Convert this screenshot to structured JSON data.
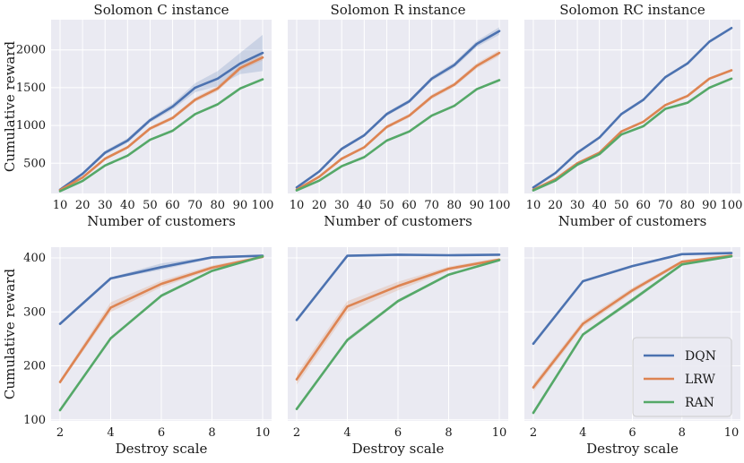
{
  "colors": {
    "DQN": "#4c72b0",
    "LRW": "#dd8452",
    "RAN": "#55a868",
    "panel_bg": "#eaeaf2",
    "grid": "#ffffff"
  },
  "chart_data": [
    {
      "type": "line",
      "title": "Solomon C instance",
      "xlabel": "Number of customers",
      "ylabel": "Cumulative reward",
      "x": [
        10,
        20,
        30,
        40,
        50,
        60,
        70,
        80,
        90,
        100
      ],
      "xticks": [
        10,
        20,
        30,
        40,
        50,
        60,
        70,
        80,
        90,
        100
      ],
      "yticks": [
        500,
        1000,
        1500,
        2000
      ],
      "ylim": [
        100,
        2400
      ],
      "series": [
        {
          "name": "DQN",
          "values": [
            150,
            360,
            640,
            800,
            1070,
            1250,
            1500,
            1620,
            1820,
            1960
          ],
          "band": [
            [
              140,
              160
            ],
            [
              345,
              375
            ],
            [
              615,
              665
            ],
            [
              770,
              830
            ],
            [
              1040,
              1100
            ],
            [
              1210,
              1290
            ],
            [
              1440,
              1560
            ],
            [
              1520,
              1720
            ],
            [
              1680,
              1960
            ],
            [
              1720,
              2200
            ]
          ]
        },
        {
          "name": "LRW",
          "values": [
            145,
            310,
            560,
            710,
            960,
            1100,
            1340,
            1490,
            1760,
            1900
          ],
          "band": [
            [
              135,
              155
            ],
            [
              295,
              325
            ],
            [
              540,
              580
            ],
            [
              690,
              730
            ],
            [
              935,
              985
            ],
            [
              1075,
              1125
            ],
            [
              1310,
              1370
            ],
            [
              1455,
              1525
            ],
            [
              1725,
              1795
            ],
            [
              1860,
              1940
            ]
          ]
        },
        {
          "name": "RAN",
          "values": [
            130,
            265,
            470,
            600,
            810,
            930,
            1150,
            1280,
            1490,
            1610
          ],
          "band": [
            [
              125,
              135
            ],
            [
              255,
              275
            ],
            [
              460,
              480
            ],
            [
              590,
              610
            ],
            [
              800,
              820
            ],
            [
              920,
              940
            ],
            [
              1140,
              1160
            ],
            [
              1270,
              1290
            ],
            [
              1475,
              1505
            ],
            [
              1595,
              1625
            ]
          ]
        }
      ]
    },
    {
      "type": "line",
      "title": "Solomon R instance",
      "xlabel": "Number of customers",
      "ylabel": "",
      "x": [
        10,
        20,
        30,
        40,
        50,
        60,
        70,
        80,
        90,
        100
      ],
      "xticks": [
        10,
        20,
        30,
        40,
        50,
        60,
        70,
        80,
        90,
        100
      ],
      "yticks": [
        500,
        1000,
        1500,
        2000
      ],
      "ylim": [
        100,
        2400
      ],
      "series": [
        {
          "name": "DQN",
          "values": [
            180,
            390,
            690,
            870,
            1150,
            1320,
            1620,
            1800,
            2080,
            2250
          ],
          "band": [
            [
              170,
              190
            ],
            [
              375,
              405
            ],
            [
              670,
              710
            ],
            [
              850,
              890
            ],
            [
              1125,
              1175
            ],
            [
              1295,
              1345
            ],
            [
              1590,
              1650
            ],
            [
              1765,
              1835
            ],
            [
              2040,
              2120
            ],
            [
              2200,
              2300
            ]
          ]
        },
        {
          "name": "LRW",
          "values": [
            150,
            320,
            560,
            710,
            980,
            1130,
            1380,
            1540,
            1790,
            1960
          ],
          "band": [
            [
              140,
              160
            ],
            [
              305,
              335
            ],
            [
              540,
              580
            ],
            [
              690,
              730
            ],
            [
              955,
              1005
            ],
            [
              1105,
              1155
            ],
            [
              1350,
              1410
            ],
            [
              1510,
              1570
            ],
            [
              1755,
              1825
            ],
            [
              1920,
              2000
            ]
          ]
        },
        {
          "name": "RAN",
          "values": [
            140,
            270,
            460,
            580,
            800,
            920,
            1130,
            1260,
            1480,
            1600
          ],
          "band": [
            [
              135,
              145
            ],
            [
              260,
              280
            ],
            [
              450,
              470
            ],
            [
              570,
              590
            ],
            [
              790,
              810
            ],
            [
              910,
              930
            ],
            [
              1120,
              1140
            ],
            [
              1250,
              1270
            ],
            [
              1465,
              1495
            ],
            [
              1585,
              1615
            ]
          ]
        }
      ]
    },
    {
      "type": "line",
      "title": "Solomon RC instance",
      "xlabel": "Number of customers",
      "ylabel": "",
      "x": [
        10,
        20,
        30,
        40,
        50,
        60,
        70,
        80,
        90,
        100
      ],
      "xticks": [
        10,
        20,
        30,
        40,
        50,
        60,
        70,
        80,
        90,
        100
      ],
      "yticks": [
        500,
        1000,
        1500,
        2000
      ],
      "ylim": [
        100,
        2400
      ],
      "series": [
        {
          "name": "DQN",
          "values": [
            180,
            370,
            640,
            840,
            1150,
            1340,
            1640,
            1820,
            2110,
            2290
          ],
          "band": [
            [
              175,
              185
            ],
            [
              362,
              378
            ],
            [
              630,
              650
            ],
            [
              830,
              850
            ],
            [
              1140,
              1160
            ],
            [
              1330,
              1350
            ],
            [
              1630,
              1650
            ],
            [
              1810,
              1830
            ],
            [
              2100,
              2120
            ],
            [
              2280,
              2300
            ]
          ]
        },
        {
          "name": "LRW",
          "values": [
            150,
            290,
            500,
            640,
            920,
            1050,
            1270,
            1390,
            1620,
            1730
          ],
          "band": [
            [
              145,
              155
            ],
            [
              283,
              297
            ],
            [
              490,
              510
            ],
            [
              630,
              650
            ],
            [
              908,
              932
            ],
            [
              1038,
              1062
            ],
            [
              1255,
              1285
            ],
            [
              1375,
              1405
            ],
            [
              1605,
              1635
            ],
            [
              1715,
              1745
            ]
          ]
        },
        {
          "name": "RAN",
          "values": [
            140,
            270,
            480,
            620,
            880,
            990,
            1220,
            1300,
            1500,
            1620
          ],
          "band": [
            [
              135,
              145
            ],
            [
              263,
              277
            ],
            [
              472,
              488
            ],
            [
              612,
              628
            ],
            [
              872,
              888
            ],
            [
              982,
              998
            ],
            [
              1212,
              1228
            ],
            [
              1292,
              1308
            ],
            [
              1490,
              1510
            ],
            [
              1610,
              1630
            ]
          ]
        }
      ]
    },
    {
      "type": "line",
      "title": "",
      "xlabel": "Destroy scale",
      "ylabel": "Cumulative reward",
      "x": [
        2,
        4,
        6,
        8,
        10
      ],
      "xticks": [
        2,
        4,
        6,
        8,
        10
      ],
      "yticks": [
        100,
        200,
        300,
        400
      ],
      "ylim": [
        98,
        420
      ],
      "series": [
        {
          "name": "DQN",
          "values": [
            278,
            362,
            383,
            401,
            404
          ],
          "band": [
            [
              277,
              279
            ],
            [
              360,
              364
            ],
            [
              378,
              390
            ],
            [
              399,
              403
            ],
            [
              402,
              406
            ]
          ]
        },
        {
          "name": "LRW",
          "values": [
            170,
            308,
            352,
            382,
            402
          ],
          "band": [
            [
              166,
              174
            ],
            [
              300,
              318
            ],
            [
              346,
              358
            ],
            [
              378,
              386
            ],
            [
              400,
              404
            ]
          ]
        },
        {
          "name": "RAN",
          "values": [
            118,
            251,
            330,
            376,
            403
          ],
          "band": [
            [
              117,
              119
            ],
            [
              249,
              253
            ],
            [
              327,
              333
            ],
            [
              374,
              378
            ],
            [
              401,
              405
            ]
          ]
        }
      ]
    },
    {
      "type": "line",
      "title": "",
      "xlabel": "Destroy scale",
      "ylabel": "",
      "x": [
        2,
        4,
        6,
        8,
        10
      ],
      "xticks": [
        2,
        4,
        6,
        8,
        10
      ],
      "yticks": [
        100,
        200,
        300,
        400
      ],
      "ylim": [
        98,
        420
      ],
      "series": [
        {
          "name": "DQN",
          "values": [
            285,
            404,
            406,
            405,
            406
          ],
          "band": [
            [
              284,
              286
            ],
            [
              403,
              405
            ],
            [
              405,
              407
            ],
            [
              404,
              406
            ],
            [
              405,
              407
            ]
          ]
        },
        {
          "name": "LRW",
          "values": [
            175,
            310,
            348,
            380,
            397
          ],
          "band": [
            [
              165,
              185
            ],
            [
              300,
              320
            ],
            [
              340,
              356
            ],
            [
              376,
              384
            ],
            [
              394,
              400
            ]
          ]
        },
        {
          "name": "RAN",
          "values": [
            120,
            248,
            320,
            369,
            396
          ],
          "band": [
            [
              119,
              121
            ],
            [
              244,
              252
            ],
            [
              317,
              323
            ],
            [
              367,
              371
            ],
            [
              394,
              398
            ]
          ]
        }
      ]
    },
    {
      "type": "line",
      "title": "",
      "xlabel": "Destroy scale",
      "ylabel": "",
      "x": [
        2,
        4,
        6,
        8,
        10
      ],
      "xticks": [
        2,
        4,
        6,
        8,
        10
      ],
      "yticks": [
        100,
        200,
        300,
        400
      ],
      "ylim": [
        98,
        420
      ],
      "series": [
        {
          "name": "DQN",
          "values": [
            241,
            357,
            385,
            407,
            409
          ],
          "band": [
            [
              240,
              242
            ],
            [
              356,
              358
            ],
            [
              383,
              387
            ],
            [
              405,
              409
            ],
            [
              407,
              411
            ]
          ]
        },
        {
          "name": "LRW",
          "values": [
            160,
            278,
            340,
            393,
            404
          ],
          "band": [
            [
              153,
              167
            ],
            [
              272,
              284
            ],
            [
              335,
              345
            ],
            [
              390,
              396
            ],
            [
              401,
              407
            ]
          ]
        },
        {
          "name": "RAN",
          "values": [
            113,
            258,
            322,
            388,
            403
          ],
          "band": [
            [
              112,
              114
            ],
            [
              255,
              261
            ],
            [
              318,
              326
            ],
            [
              386,
              390
            ],
            [
              401,
              405
            ]
          ]
        }
      ]
    }
  ],
  "legend": {
    "entries": [
      "DQN",
      "LRW",
      "RAN"
    ],
    "placement": "lower-right of bottom-right panel"
  }
}
